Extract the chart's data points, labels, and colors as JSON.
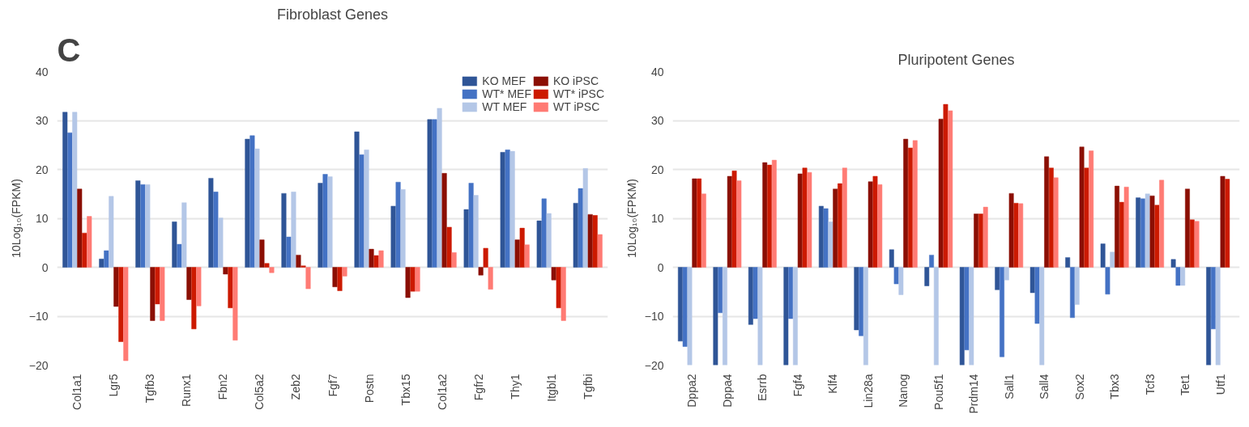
{
  "chart_data": [
    {
      "type": "bar",
      "title": "Fibroblast Genes",
      "ylabel": "10Log₁₀(FPKM)",
      "annotations": [
        "C"
      ],
      "categories": [
        "Col1a1",
        "Lgr5",
        "Tgfb3",
        "Runx1",
        "Fbn2",
        "Col5a2",
        "Zeb2",
        "Fgf7",
        "Postn",
        "Tbx15",
        "Col1a2",
        "Fgfr2",
        "Thy1",
        "Itgbl1",
        "Tgfbi"
      ],
      "series": [
        {
          "name": "KO MEF",
          "color": "#2f5597",
          "values": [
            31.7,
            1.7,
            17.7,
            9.3,
            18.2,
            26.2,
            15.1,
            17.2,
            27.7,
            12.5,
            30.2,
            11.8,
            23.5,
            9.5,
            13.1
          ]
        },
        {
          "name": "WT* MEF",
          "color": "#4472c4",
          "values": [
            27.5,
            3.4,
            16.9,
            4.7,
            15.4,
            26.9,
            6.2,
            19.0,
            23.0,
            17.4,
            30.2,
            17.2,
            24.0,
            14.0,
            16.1
          ]
        },
        {
          "name": "WT MEF",
          "color": "#b4c7e7",
          "values": [
            31.7,
            14.5,
            16.9,
            13.2,
            10.1,
            24.2,
            15.4,
            18.5,
            24.0,
            15.9,
            32.5,
            14.7,
            23.7,
            11.0,
            20.2
          ]
        },
        {
          "name": "KO iPSC",
          "color": "#8b0f04",
          "values": [
            16.0,
            -8.0,
            -10.9,
            -6.6,
            -1.4,
            5.6,
            2.5,
            -4.0,
            3.7,
            -6.2,
            19.2,
            -1.6,
            5.6,
            -2.6,
            10.8
          ]
        },
        {
          "name": "WT* iPSC",
          "color": "#cc1a00",
          "values": [
            7.0,
            -15.2,
            -7.5,
            -12.6,
            -8.3,
            0.8,
            0.3,
            -4.8,
            2.4,
            -4.9,
            8.2,
            3.9,
            8.0,
            -8.3,
            10.6
          ]
        },
        {
          "name": "WT iPSC",
          "color": "#ff7b74",
          "values": [
            10.4,
            -19.1,
            -10.9,
            -7.9,
            -14.9,
            -1.1,
            -4.4,
            -1.8,
            3.4,
            -4.9,
            3.0,
            -4.5,
            4.6,
            -10.9,
            6.7
          ]
        }
      ],
      "ylim": [
        -20,
        40
      ],
      "yticks": [
        -20,
        -10,
        0,
        10,
        20,
        30,
        40
      ],
      "grid": "y",
      "legend": "top right"
    },
    {
      "type": "bar",
      "title": "Pluripotent Genes",
      "ylabel": "10Log₁₀(FPKM)",
      "categories": [
        "Dppa2",
        "Dppa4",
        "Esrrb",
        "Fgf4",
        "Klf4",
        "Lin28a",
        "Nanog",
        "Pou5f1",
        "Prdm14",
        "Sall1",
        "Sall4",
        "Sox2",
        "Tbx3",
        "Tcf3",
        "Tet1",
        "Utf1"
      ],
      "series": [
        {
          "color": "#2f5597",
          "values": [
            -15.1,
            -20,
            -11.7,
            -20,
            12.5,
            -12.8,
            3.6,
            -3.8,
            -20,
            -4.6,
            -5.2,
            2.0,
            4.8,
            14.2,
            1.6,
            -20
          ]
        },
        {
          "color": "#4472c4",
          "values": [
            -16.2,
            -9.3,
            -10.5,
            -10.5,
            12.0,
            -14.0,
            -3.4,
            2.5,
            -16.9,
            -18.3,
            -11.5,
            -10.3,
            -5.5,
            14.0,
            -3.7,
            -12.6
          ]
        },
        {
          "color": "#b4c7e7",
          "values": [
            -20,
            -20,
            -20,
            -20,
            9.3,
            -20,
            -5.6,
            -20,
            -20,
            -2.6,
            -20,
            -7.6,
            3.1,
            15.0,
            -3.7,
            -20
          ]
        },
        {
          "color": "#8b0f04",
          "values": [
            18.1,
            18.6,
            21.4,
            19.1,
            16.0,
            17.5,
            26.2,
            30.3,
            10.9,
            15.1,
            22.6,
            24.6,
            16.6,
            14.6,
            16.0,
            18.6
          ]
        },
        {
          "color": "#cc1a00",
          "values": [
            18.1,
            19.7,
            20.9,
            20.3,
            17.1,
            18.6,
            24.4,
            33.3,
            10.9,
            13.1,
            20.3,
            20.3,
            13.3,
            12.7,
            9.7,
            18.0
          ]
        },
        {
          "color": "#ff7b74",
          "values": [
            15.0,
            17.7,
            21.9,
            19.4,
            20.3,
            16.9,
            25.9,
            32.0,
            12.3,
            13.0,
            18.3,
            23.8,
            16.4,
            17.8,
            9.4,
            null
          ]
        }
      ],
      "ylim": [
        -20,
        40
      ],
      "yticks": [
        -20,
        -10,
        0,
        10,
        20,
        30,
        40
      ],
      "grid": "y"
    }
  ]
}
